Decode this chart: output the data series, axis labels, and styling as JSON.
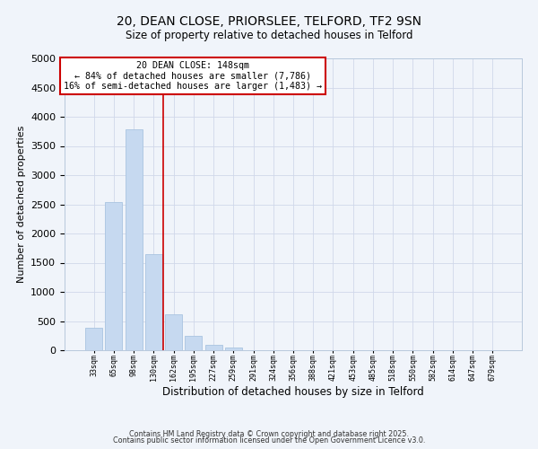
{
  "title1": "20, DEAN CLOSE, PRIORSLEE, TELFORD, TF2 9SN",
  "title2": "Size of property relative to detached houses in Telford",
  "xlabel": "Distribution of detached houses by size in Telford",
  "ylabel": "Number of detached properties",
  "xlabels": [
    "33sqm",
    "65sqm",
    "98sqm",
    "130sqm",
    "162sqm",
    "195sqm",
    "227sqm",
    "259sqm",
    "291sqm",
    "324sqm",
    "356sqm",
    "388sqm",
    "421sqm",
    "453sqm",
    "485sqm",
    "518sqm",
    "550sqm",
    "582sqm",
    "614sqm",
    "647sqm",
    "679sqm"
  ],
  "bar_values": [
    390,
    2540,
    3780,
    1650,
    620,
    250,
    100,
    50,
    0,
    0,
    0,
    0,
    0,
    0,
    0,
    0,
    0,
    0,
    0,
    0,
    0
  ],
  "bar_color": "#c6d9f0",
  "bar_edge_color": "#aac4e0",
  "ylim": [
    0,
    5000
  ],
  "yticks": [
    0,
    500,
    1000,
    1500,
    2000,
    2500,
    3000,
    3500,
    4000,
    4500,
    5000
  ],
  "vline_x": 3.5,
  "vline_color": "#cc0000",
  "annotation_title": "20 DEAN CLOSE: 148sqm",
  "annotation_line1": "← 84% of detached houses are smaller (7,786)",
  "annotation_line2": "16% of semi-detached houses are larger (1,483) →",
  "annotation_box_color": "#cc0000",
  "footer1": "Contains HM Land Registry data © Crown copyright and database right 2025.",
  "footer2": "Contains public sector information licensed under the Open Government Licence v3.0.",
  "bg_color": "#f0f4fa",
  "grid_color": "#d0d8ea"
}
